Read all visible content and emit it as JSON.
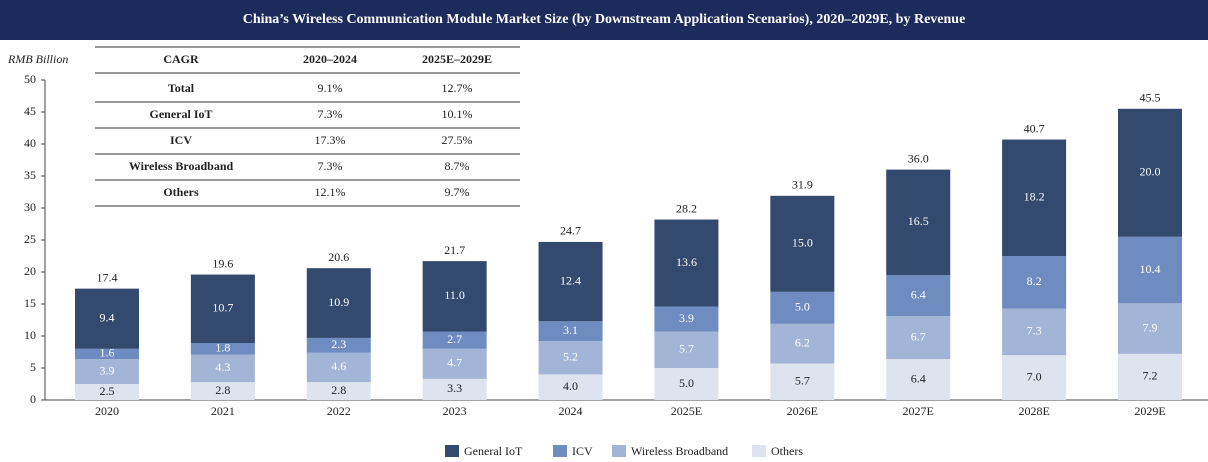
{
  "chart_data": {
    "type": "stacked_bar",
    "title": "China’s Wireless Communication Module Market Size (by Downstream Application Scenarios), 2020–2029E, by Revenue",
    "y_label": "RMB Billion",
    "categories": [
      "2020",
      "2021",
      "2022",
      "2023",
      "2024",
      "2025E",
      "2026E",
      "2027E",
      "2028E",
      "2029E"
    ],
    "series": [
      {
        "name": "Others",
        "color": "#dde3ef",
        "values": [
          2.5,
          2.8,
          2.8,
          3.3,
          4.0,
          5.0,
          5.7,
          6.4,
          7.0,
          7.2
        ],
        "value_labels": [
          "2.5",
          "2.8",
          "2.8",
          "3.3",
          "4.0",
          "5.0",
          "5.7",
          "6.4",
          "7.0",
          "7.2"
        ]
      },
      {
        "name": "Wireless Broadband",
        "color": "#a3b5d6",
        "values": [
          3.9,
          4.3,
          4.6,
          4.7,
          5.2,
          5.7,
          6.2,
          6.7,
          7.3,
          7.9
        ],
        "value_labels": [
          "3.9",
          "4.3",
          "4.6",
          "4.7",
          "5.2",
          "5.7",
          "6.2",
          "6.7",
          "7.3",
          "7.9"
        ]
      },
      {
        "name": "ICV",
        "color": "#6e8cbf",
        "values": [
          1.6,
          1.8,
          2.3,
          2.7,
          3.1,
          3.9,
          5.0,
          6.4,
          8.2,
          10.4
        ],
        "value_labels": [
          "1.6",
          "1.8",
          "2.3",
          "2.7",
          "3.1",
          "3.9",
          "5.0",
          "6.4",
          "8.2",
          "10.4"
        ]
      },
      {
        "name": "General IoT",
        "color": "#34496e",
        "values": [
          9.4,
          10.7,
          10.9,
          11.0,
          12.4,
          13.6,
          15.0,
          16.5,
          18.2,
          20.0
        ],
        "value_labels": [
          "9.4",
          "10.7",
          "10.9",
          "11.0",
          "12.4",
          "13.6",
          "15.0",
          "16.5",
          "18.2",
          "20.0"
        ]
      }
    ],
    "totals": [
      17.4,
      19.6,
      20.6,
      21.7,
      24.7,
      28.2,
      31.9,
      36.0,
      40.7,
      45.5
    ],
    "total_labels": [
      "17.4",
      "19.6",
      "20.6",
      "21.7",
      "24.7",
      "28.2",
      "31.9",
      "36.0",
      "40.7",
      "45.5"
    ],
    "ylim": [
      0,
      50
    ],
    "yticks": [
      0,
      5,
      10,
      15,
      20,
      25,
      30,
      35,
      40,
      45,
      50
    ]
  },
  "table": {
    "header": [
      "CAGR",
      "2020–2024",
      "2025E–2029E"
    ],
    "rows": [
      [
        "Total",
        "9.1%",
        "12.7%"
      ],
      [
        "General IoT",
        "7.3%",
        "10.1%"
      ],
      [
        "ICV",
        "17.3%",
        "27.5%"
      ],
      [
        "Wireless Broadband",
        "7.3%",
        "8.7%"
      ],
      [
        "Others",
        "12.1%",
        "9.7%"
      ]
    ]
  }
}
